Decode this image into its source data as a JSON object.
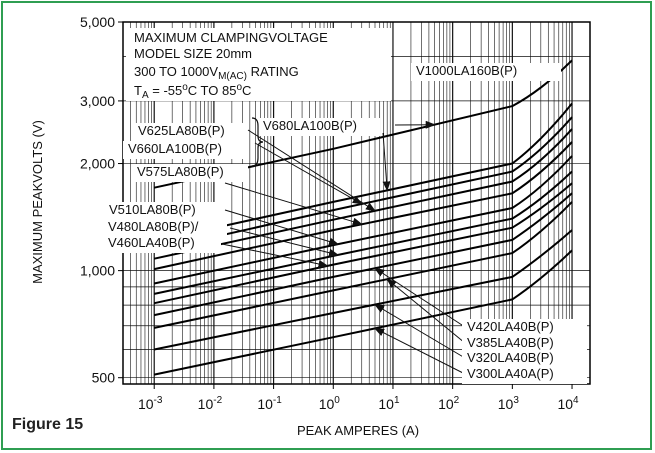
{
  "figure_label": "Figure 15",
  "chart_data": {
    "type": "line",
    "annotation_lines": [
      "MAXIMUM CLAMPINGVOLTAGE",
      "MODEL SIZE 20mm",
      "300 TO 1000V",
      "TA = -55oC TO 85oC"
    ],
    "annotation_rating": {
      "prefix": "300 TO 1000V",
      "sub": "M(AC)",
      "suffix": " RATING"
    },
    "annotation_temp": {
      "prefix": "T",
      "sub": "A",
      "mid": " = -55",
      "sup1": "o",
      "c1": "C TO 85",
      "sup2": "o",
      "c2": "C"
    },
    "xlabel": "PEAK AMPERES (A)",
    "ylabel": "MAXIMUM PEAKVOLTS (V)",
    "x_scale": "log",
    "y_scale": "log",
    "xlim": [
      0.0003,
      20000
    ],
    "ylim": [
      480,
      5000
    ],
    "x_ticks": [
      {
        "value": 0.001,
        "base": "10",
        "exp": "-3"
      },
      {
        "value": 0.01,
        "base": "10",
        "exp": "-2"
      },
      {
        "value": 0.1,
        "base": "10",
        "exp": "-1"
      },
      {
        "value": 1,
        "base": "10",
        "exp": "0"
      },
      {
        "value": 10,
        "base": "10",
        "exp": "1"
      },
      {
        "value": 100,
        "base": "10",
        "exp": "2"
      },
      {
        "value": 1000,
        "base": "10",
        "exp": "3"
      },
      {
        "value": 10000,
        "base": "10",
        "exp": "4"
      }
    ],
    "y_ticks": [
      {
        "value": 5000,
        "label": "5,000"
      },
      {
        "value": 3000,
        "label": "3,000"
      },
      {
        "value": 2000,
        "label": "2,000"
      },
      {
        "value": 1000,
        "label": "1,000"
      },
      {
        "value": 500,
        "label": "500"
      }
    ],
    "grid": true,
    "series": [
      {
        "name": "V1000LA160B(P)",
        "x": [
          0.001,
          1,
          1000,
          3000,
          10000
        ],
        "y": [
          1710,
          2200,
          2900,
          3200,
          3900
        ]
      },
      {
        "name": "V680LA100B(P)",
        "x": [
          0.001,
          1,
          1000,
          3000,
          10000
        ],
        "y": [
          1210,
          1560,
          2000,
          2300,
          2950
        ]
      },
      {
        "name": "V660LA100B(P)",
        "x": [
          0.001,
          1,
          1000,
          3000,
          10000
        ],
        "y": [
          1140,
          1480,
          1900,
          2150,
          2700
        ]
      },
      {
        "name": "V625LA80B(P)",
        "x": [
          0.001,
          1,
          1000,
          3000,
          10000
        ],
        "y": [
          1080,
          1390,
          1780,
          2000,
          2500
        ]
      },
      {
        "name": "V575LA80B(P)",
        "x": [
          0.001,
          1,
          1000,
          3000,
          10000
        ],
        "y": [
          1010,
          1300,
          1650,
          1860,
          2300
        ]
      },
      {
        "name": "V510LA80B(P)",
        "x": [
          0.001,
          1,
          1000,
          3000,
          10000
        ],
        "y": [
          920,
          1180,
          1500,
          1690,
          2100
        ]
      },
      {
        "name": "V480LA80B(P)/",
        "x": [
          0.001,
          1,
          1000,
          3000,
          10000
        ],
        "y": [
          860,
          1100,
          1400,
          1570,
          1900
        ]
      },
      {
        "name": "V460LA40B(P)",
        "x": [
          0.001,
          1,
          1000,
          3000,
          10000
        ],
        "y": [
          810,
          1040,
          1320,
          1480,
          1760
        ]
      },
      {
        "name": "V420LA40B(P)",
        "x": [
          0.001,
          1,
          1000,
          3000,
          10000
        ],
        "y": [
          750,
          960,
          1220,
          1380,
          1650
        ]
      },
      {
        "name": "V385LA40B(P)",
        "x": [
          0.001,
          1,
          1000,
          3000,
          10000
        ],
        "y": [
          690,
          880,
          1120,
          1270,
          1560
        ]
      },
      {
        "name": "V320LA40B(P)",
        "x": [
          0.001,
          1,
          1000,
          3000,
          10000
        ],
        "y": [
          600,
          760,
          960,
          1090,
          1300
        ]
      },
      {
        "name": "V300LA40A(P)",
        "x": [
          0.001,
          1,
          1000,
          3000,
          10000
        ],
        "y": [
          510,
          650,
          830,
          940,
          1140
        ]
      }
    ]
  }
}
